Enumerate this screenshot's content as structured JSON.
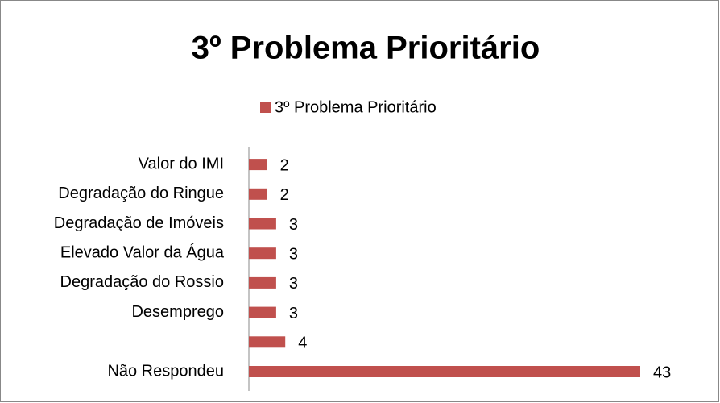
{
  "chart_data": {
    "type": "bar",
    "orientation": "horizontal",
    "title": "3º Problema Prioritário",
    "categories": [
      "Não Respondeu",
      null,
      "Desemprego",
      "Degradação do Rossio",
      "Elevado Valor da Água",
      "Degradação de Imóveis",
      "Degradação do Ringue",
      "Valor do IMI"
    ],
    "series": [
      {
        "name": "3º Problema Prioritário",
        "color": "#c0504d",
        "values": [
          43,
          4,
          3,
          3,
          3,
          3,
          2,
          2
        ]
      }
    ],
    "legend": "top"
  }
}
